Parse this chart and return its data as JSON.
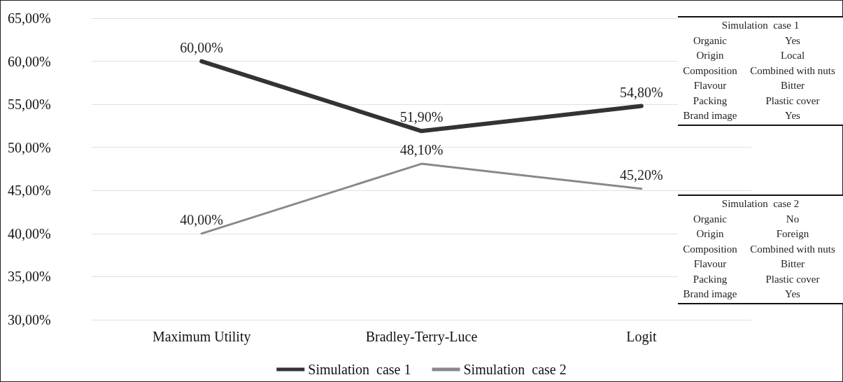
{
  "chart_data": {
    "type": "line",
    "categories": [
      "Maximum Utility",
      "Bradley-Terry-Luce",
      "Logit"
    ],
    "series": [
      {
        "name": "Simulation  case 1",
        "color": "#333333",
        "values": [
          60,
          51.9,
          54.8
        ],
        "value_labels": [
          "60,00%",
          "51,90%",
          "54,80%"
        ]
      },
      {
        "name": "Simulation  case 2",
        "color": "#898989",
        "values": [
          40,
          48.1,
          45.2
        ],
        "value_labels": [
          "40,00%",
          "48,10%",
          "45,20%"
        ]
      }
    ],
    "ylim": [
      30,
      65
    ],
    "yticks": [
      {
        "value": 30,
        "label": "30,00%"
      },
      {
        "value": 35,
        "label": "35,00%"
      },
      {
        "value": 40,
        "label": "40,00%"
      },
      {
        "value": 45,
        "label": "45,00%"
      },
      {
        "value": 50,
        "label": "50,00%"
      },
      {
        "value": 55,
        "label": "55,00%"
      },
      {
        "value": 60,
        "label": "60,00%"
      },
      {
        "value": 65,
        "label": "65,00%"
      }
    ],
    "grid": "y",
    "legend": "bottom",
    "marker": "none",
    "line_style": "solid",
    "annotations": [
      "Simulation  case 1",
      "Organic",
      "Yes",
      "Origin",
      "Local",
      "Composition",
      "Combined with nuts",
      "Flavour",
      "Bitter",
      "Packing",
      "Plastic cover",
      "Brand image",
      "Yes",
      "Simulation  case 2",
      "Organic",
      "No",
      "Origin",
      "Foreign",
      "Composition",
      "Combined with nuts",
      "Flavour",
      "Bitter",
      "Packing",
      "Plastic cover",
      "Brand image",
      "Yes"
    ]
  }
}
